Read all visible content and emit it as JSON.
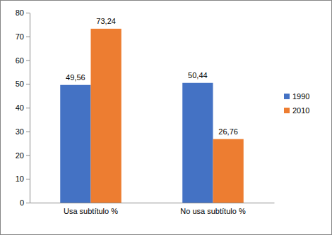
{
  "chart_data": {
    "type": "bar",
    "categories": [
      "Usa subtítulo %",
      "No usa subtítulo %"
    ],
    "series": [
      {
        "name": "1990",
        "color": "#4472c4",
        "values": [
          49.56,
          50.44
        ],
        "value_labels": [
          "49,56",
          "50,44"
        ]
      },
      {
        "name": "2010",
        "color": "#ed7d31",
        "values": [
          73.24,
          26.76
        ],
        "value_labels": [
          "73,24",
          "26,76"
        ]
      }
    ],
    "ylim": [
      0,
      80
    ],
    "yticks": [
      0,
      10,
      20,
      30,
      40,
      50,
      60,
      70,
      80
    ],
    "grid": false,
    "legend": "right",
    "data_labels": true
  }
}
